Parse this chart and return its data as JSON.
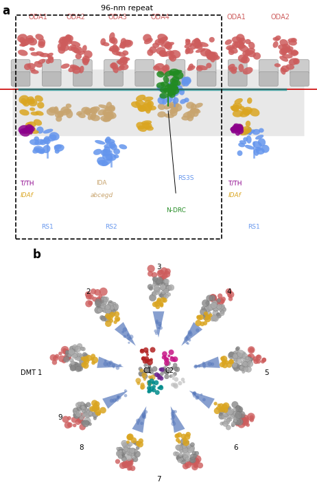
{
  "panel_a": {
    "title": "96-nm repeat",
    "oda_labels_inside": [
      "ODA1",
      "ODA2",
      "ODA3",
      "ODA4"
    ],
    "oda_labels_outside": [
      "ODA1",
      "ODA2"
    ],
    "bottom_labels_left": [
      "T/TH",
      "IDAf",
      "RS1"
    ],
    "bottom_labels_center": [
      "IDA",
      "abcegd",
      "RS2"
    ],
    "bottom_labels_right_inner": [
      "RS3S",
      "N-DRC"
    ],
    "bottom_labels_right_outer": [
      "T/TH",
      "IDAf",
      "RS1"
    ],
    "colors": {
      "ODA": "#CD5C5C",
      "microtubule": "#D3D3D3",
      "IDAf": "#DAA520",
      "IDA_abcegd": "#C8A46E",
      "T_TH": "#8B008B",
      "RS": "#6495ED",
      "N_DRC": "#228B22",
      "RS3S": "#6495ED",
      "red_line": "#CC0000",
      "teal": "#008B8B",
      "dashed_box": "#000000"
    }
  },
  "panel_b": {
    "dmt_numbers": [
      "2",
      "3",
      "4",
      "5",
      "6",
      "7",
      "8",
      "9"
    ],
    "dmt_label": "DMT 1",
    "central_labels": [
      "C1",
      "C2"
    ],
    "colors": {
      "outer_doublets": "#808080",
      "ODA_blobs": "#CD5C5C",
      "IDA_yellow": "#DAA520",
      "IDA_teal": "#008B8B",
      "IDA_brown": "#C8A46E",
      "RS_blue": "#6495ED",
      "central_red": "#CC0000",
      "central_crimson": "#DC143C",
      "central_magenta": "#C71585",
      "central_purple": "#6B238E",
      "central_teal": "#008B8B",
      "central_green": "#228B22",
      "central_gray": "#C0C0C0"
    }
  },
  "background_color": "#FFFFFF",
  "panel_label_color": "#000000",
  "panel_label_fontsize": 12
}
